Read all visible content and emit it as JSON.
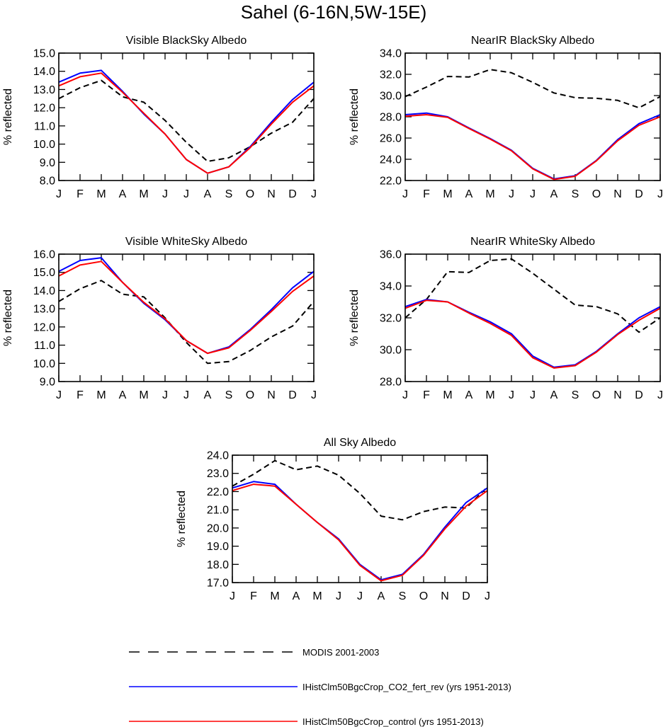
{
  "figure": {
    "title": "Sahel (6-16N,5W-15E)"
  },
  "legend": {
    "placement": "bottom",
    "entries": [
      {
        "label": "MODIS 2001-2003",
        "color": "#000000",
        "dash": "dashed"
      },
      {
        "label": "IHistClm50BgcCrop_CO2_fert_rev (yrs 1951-2013)",
        "color": "#0000ff",
        "dash": "solid"
      },
      {
        "label": "IHistClm50BgcCrop_control (yrs 1951-2013)",
        "color": "#ff0000",
        "dash": "solid"
      }
    ]
  },
  "chart_data": [
    {
      "type": "line",
      "title": "Visible BlackSky Albedo",
      "ylabel": "% reflected",
      "ylim": [
        8.0,
        15.0
      ],
      "yticks": [
        "8.0",
        "9.0",
        "10.0",
        "11.0",
        "12.0",
        "13.0",
        "14.0",
        "15.0"
      ],
      "categories": [
        "J",
        "F",
        "M",
        "A",
        "M",
        "J",
        "J",
        "A",
        "S",
        "O",
        "N",
        "D",
        "J"
      ],
      "series": [
        {
          "name": "MODIS 2001-2003",
          "color": "#000000",
          "dash": "dashed",
          "values": [
            12.5,
            13.1,
            13.5,
            12.6,
            12.3,
            11.3,
            10.1,
            9.05,
            9.25,
            9.85,
            10.6,
            11.2,
            12.5
          ]
        },
        {
          "name": "IHistClm50BgcCrop_CO2_fert_rev (yrs 1951-2013)",
          "color": "#0000ff",
          "dash": "solid",
          "values": [
            13.4,
            13.9,
            14.05,
            12.9,
            11.65,
            10.55,
            9.15,
            8.4,
            8.75,
            9.85,
            11.2,
            12.45,
            13.4
          ]
        },
        {
          "name": "IHistClm50BgcCrop_control (yrs 1951-2013)",
          "color": "#ff0000",
          "dash": "solid",
          "values": [
            13.2,
            13.7,
            13.9,
            12.85,
            11.7,
            10.55,
            9.15,
            8.4,
            8.75,
            9.8,
            11.1,
            12.3,
            13.2
          ]
        }
      ]
    },
    {
      "type": "line",
      "title": "NearIR BlackSky Albedo",
      "ylabel": "% reflected",
      "ylim": [
        22.0,
        34.0
      ],
      "yticks": [
        "22.0",
        "24.0",
        "26.0",
        "28.0",
        "30.0",
        "32.0",
        "34.0"
      ],
      "categories": [
        "J",
        "F",
        "M",
        "A",
        "M",
        "J",
        "J",
        "A",
        "S",
        "O",
        "N",
        "D",
        "J"
      ],
      "series": [
        {
          "name": "MODIS 2001-2003",
          "color": "#000000",
          "dash": "dashed",
          "values": [
            29.9,
            30.8,
            31.8,
            31.75,
            32.45,
            32.15,
            31.25,
            30.25,
            29.8,
            29.75,
            29.55,
            28.85,
            29.9
          ]
        },
        {
          "name": "IHistClm50BgcCrop_CO2_fert_rev (yrs 1951-2013)",
          "color": "#0000ff",
          "dash": "solid",
          "values": [
            28.2,
            28.35,
            28.0,
            26.95,
            25.95,
            24.85,
            23.15,
            22.15,
            22.45,
            23.9,
            25.85,
            27.35,
            28.2
          ]
        },
        {
          "name": "IHistClm50BgcCrop_control (yrs 1951-2013)",
          "color": "#ff0000",
          "dash": "solid",
          "values": [
            28.05,
            28.2,
            27.95,
            26.9,
            25.9,
            24.8,
            23.1,
            22.1,
            22.4,
            23.85,
            25.75,
            27.2,
            28.0
          ]
        }
      ]
    },
    {
      "type": "line",
      "title": "Visible WhiteSky Albedo",
      "ylabel": "% reflected",
      "ylim": [
        9.0,
        16.0
      ],
      "yticks": [
        "9.0",
        "10.0",
        "11.0",
        "12.0",
        "13.0",
        "14.0",
        "15.0",
        "16.0"
      ],
      "categories": [
        "J",
        "F",
        "M",
        "A",
        "M",
        "J",
        "J",
        "A",
        "S",
        "O",
        "N",
        "D",
        "J"
      ],
      "series": [
        {
          "name": "MODIS 2001-2003",
          "color": "#000000",
          "dash": "dashed",
          "values": [
            13.4,
            14.1,
            14.55,
            13.8,
            13.65,
            12.5,
            11.15,
            10.0,
            10.1,
            10.7,
            11.45,
            12.05,
            13.4
          ]
        },
        {
          "name": "IHistClm50BgcCrop_CO2_fert_rev (yrs 1951-2013)",
          "color": "#0000ff",
          "dash": "solid",
          "values": [
            15.05,
            15.65,
            15.8,
            14.45,
            13.3,
            12.4,
            11.25,
            10.55,
            10.9,
            11.85,
            12.95,
            14.15,
            15.05
          ]
        },
        {
          "name": "IHistClm50BgcCrop_control (yrs 1951-2013)",
          "color": "#ff0000",
          "dash": "solid",
          "values": [
            14.8,
            15.4,
            15.6,
            14.45,
            13.35,
            12.45,
            11.25,
            10.55,
            10.85,
            11.8,
            12.85,
            13.95,
            14.8
          ]
        }
      ]
    },
    {
      "type": "line",
      "title": "NearIR WhiteSky Albedo",
      "ylabel": "% reflected",
      "ylim": [
        28.0,
        36.0
      ],
      "yticks": [
        "28.0",
        "30.0",
        "32.0",
        "34.0",
        "36.0"
      ],
      "categories": [
        "J",
        "F",
        "M",
        "A",
        "M",
        "J",
        "J",
        "A",
        "S",
        "O",
        "N",
        "D",
        "J"
      ],
      "series": [
        {
          "name": "MODIS 2001-2003",
          "color": "#000000",
          "dash": "dashed",
          "values": [
            32.0,
            33.15,
            34.9,
            34.85,
            35.6,
            35.7,
            34.8,
            33.8,
            32.8,
            32.7,
            32.25,
            31.1,
            32.0
          ]
        },
        {
          "name": "IHistClm50BgcCrop_CO2_fert_rev (yrs 1951-2013)",
          "color": "#0000ff",
          "dash": "solid",
          "values": [
            32.7,
            33.15,
            33.0,
            32.35,
            31.75,
            31.0,
            29.6,
            28.9,
            29.05,
            29.9,
            31.0,
            32.0,
            32.7
          ]
        },
        {
          "name": "IHistClm50BgcCrop_control (yrs 1951-2013)",
          "color": "#ff0000",
          "dash": "solid",
          "values": [
            32.6,
            33.1,
            33.0,
            32.3,
            31.65,
            30.9,
            29.5,
            28.85,
            29.0,
            29.85,
            30.95,
            31.85,
            32.6
          ]
        }
      ]
    },
    {
      "type": "line",
      "title": "All Sky Albedo",
      "ylabel": "% reflected",
      "ylim": [
        17.0,
        24.0
      ],
      "yticks": [
        "17.0",
        "18.0",
        "19.0",
        "20.0",
        "21.0",
        "22.0",
        "23.0",
        "24.0"
      ],
      "categories": [
        "J",
        "F",
        "M",
        "A",
        "M",
        "J",
        "J",
        "A",
        "S",
        "O",
        "N",
        "D",
        "J"
      ],
      "series": [
        {
          "name": "MODIS 2001-2003",
          "color": "#000000",
          "dash": "dashed",
          "values": [
            22.3,
            22.95,
            23.7,
            23.2,
            23.4,
            22.9,
            21.9,
            20.65,
            20.45,
            20.9,
            21.15,
            21.1,
            22.25
          ]
        },
        {
          "name": "IHistClm50BgcCrop_CO2_fert_rev (yrs 1951-2013)",
          "color": "#0000ff",
          "dash": "solid",
          "values": [
            22.2,
            22.55,
            22.4,
            21.3,
            20.3,
            19.4,
            18.0,
            17.15,
            17.45,
            18.55,
            20.05,
            21.4,
            22.2
          ]
        },
        {
          "name": "IHistClm50BgcCrop_control (yrs 1951-2013)",
          "color": "#ff0000",
          "dash": "solid",
          "values": [
            22.05,
            22.4,
            22.3,
            21.3,
            20.3,
            19.35,
            17.95,
            17.1,
            17.4,
            18.5,
            19.95,
            21.2,
            22.05
          ]
        }
      ]
    }
  ]
}
